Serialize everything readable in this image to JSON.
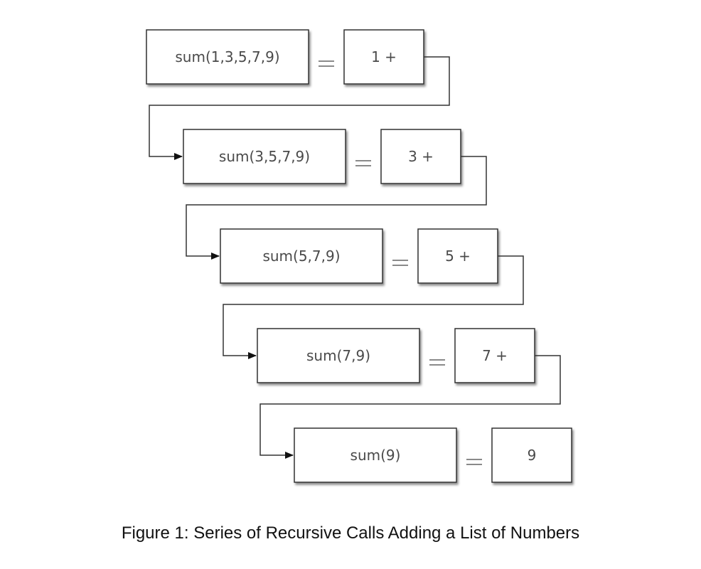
{
  "diagram": {
    "rows": [
      {
        "call": "sum(1,3,5,7,9)",
        "result": "1 +"
      },
      {
        "call": "sum(3,5,7,9)",
        "result": "3 +"
      },
      {
        "call": "sum(5,7,9)",
        "result": "5 +"
      },
      {
        "call": "sum(7,9)",
        "result": "7 +"
      },
      {
        "call": "sum(9)",
        "result": "9"
      }
    ]
  },
  "caption": "Figure 1: Series of Recursive Calls Adding a List of Numbers"
}
